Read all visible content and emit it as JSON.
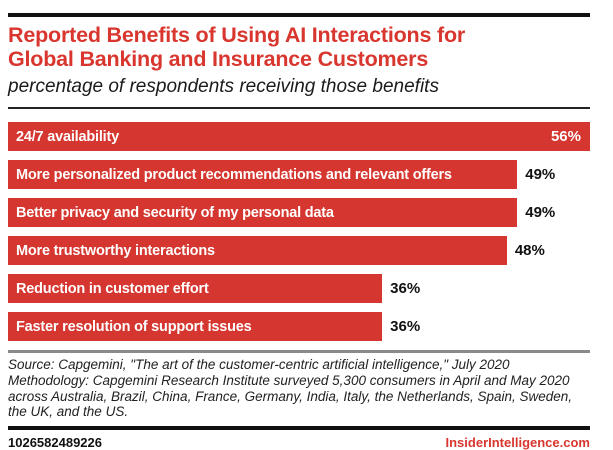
{
  "header": {
    "title_line1": "Reported Benefits of Using AI Interactions for",
    "title_line2": "Global Banking and Insurance Customers",
    "subtitle": "percentage of respondents receiving those benefits"
  },
  "chart_data": {
    "type": "bar",
    "orientation": "horizontal",
    "categories": [
      "24/7 availability",
      "More personalized product recommendations and relevant offers",
      "Better privacy and security of my personal data",
      "More trustworthy interactions",
      "Reduction in customer effort",
      "Faster resolution of support issues"
    ],
    "values": [
      56,
      49,
      49,
      48,
      36,
      36
    ],
    "value_suffix": "%",
    "xlim": [
      0,
      56
    ],
    "bar_color": "#d5362f",
    "value_label_inside_max": true,
    "grid": false,
    "legend": false
  },
  "footnote": {
    "source": "Source: Capgemini, \"The art of the customer-centric artificial intelligence,\" July 2020",
    "methodology": "Methodology: Capgemini Research Institute surveyed 5,300 consumers in April and May 2020 across Australia, Brazil, China, France, Germany, India, Italy, the Netherlands, Spain, Sweden, the UK, and the US."
  },
  "footer": {
    "chart_id": "1026582489226",
    "site": "InsiderIntelligence.com"
  },
  "colors": {
    "accent_red": "#d8362e",
    "bar_red": "#d5362f",
    "text_black": "#111111",
    "divider_gray": "#8a8a8a"
  }
}
